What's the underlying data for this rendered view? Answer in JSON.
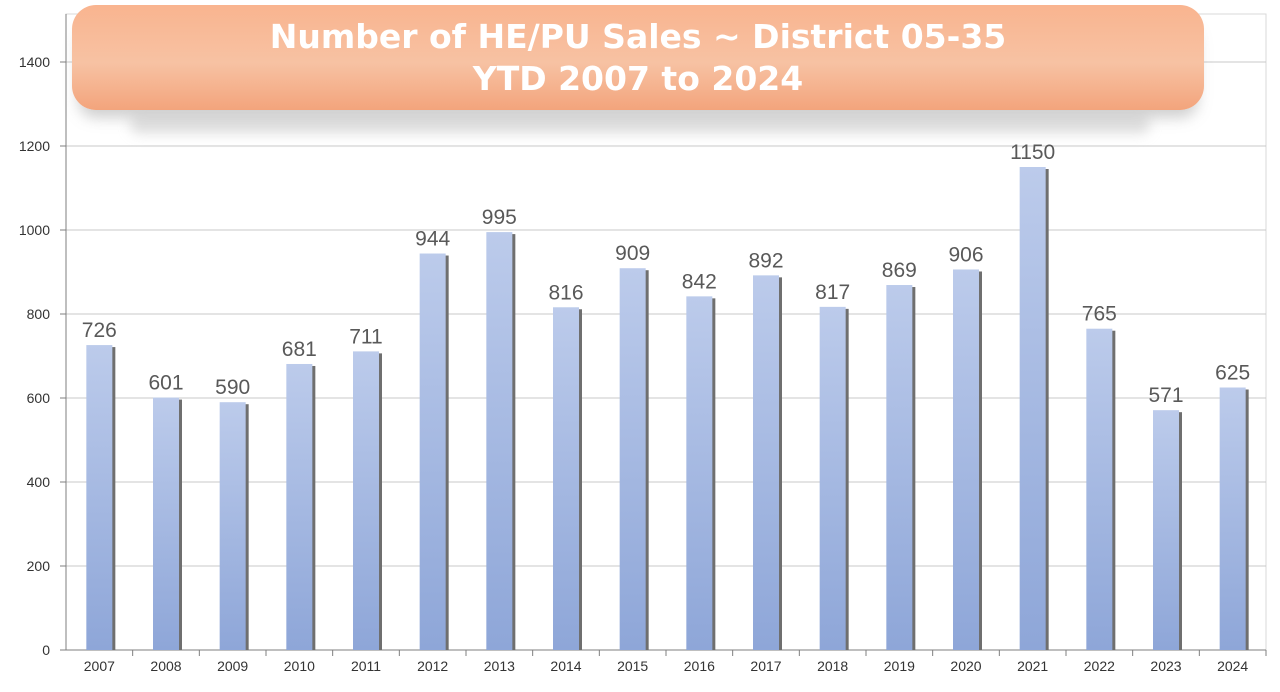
{
  "chart_data": {
    "type": "bar",
    "title": "Number of HE/PU Sales ~ District 05-35",
    "subtitle": "YTD 2007 to 2024",
    "xlabel": "",
    "ylabel": "",
    "categories": [
      "2007",
      "2008",
      "2009",
      "2010",
      "2011",
      "2012",
      "2013",
      "2014",
      "2015",
      "2016",
      "2017",
      "2018",
      "2019",
      "2020",
      "2021",
      "2022",
      "2023",
      "2024"
    ],
    "values": [
      726,
      601,
      590,
      681,
      711,
      944,
      995,
      816,
      909,
      842,
      892,
      817,
      869,
      906,
      1150,
      765,
      571,
      625
    ],
    "ylim": [
      0,
      1500
    ],
    "yticks": [
      0,
      200,
      400,
      600,
      800,
      1000,
      1200,
      1400
    ],
    "grid": true,
    "legend": "none",
    "data_labels": true
  },
  "colors": {
    "bar_top": "#bccbeb",
    "bar_bottom": "#8ea6d8",
    "bar_shadow": "#6f6f6f",
    "gridline": "#c9c9c9",
    "axis": "#7f7f7f",
    "title_text": "#ffffff",
    "title_box": "#f7b894",
    "tick_text": "#333333",
    "data_label": "#595959"
  }
}
